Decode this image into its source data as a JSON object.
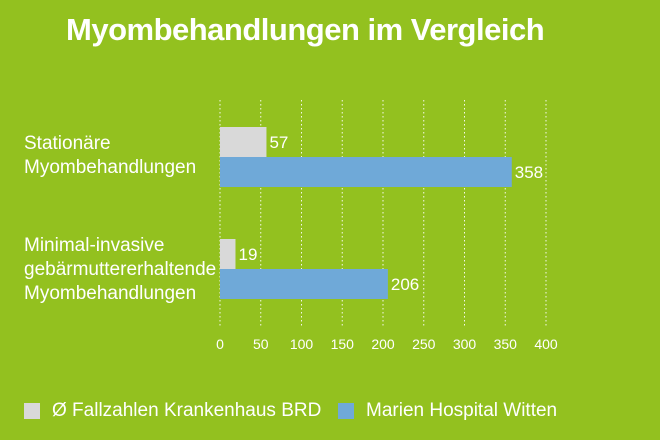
{
  "chart_data": {
    "type": "bar",
    "orientation": "horizontal",
    "title": "Myombehandlungen im Vergleich",
    "categories": [
      [
        "Stationäre",
        "Myombehandlungen"
      ],
      [
        "Minimal-invasive",
        "gebärmuttererhaltende",
        "Myombehandlungen"
      ]
    ],
    "series": [
      {
        "name": "Ø Fallzahlen Krankenhaus BRD",
        "color": "#d9d9d9",
        "values": [
          57,
          19
        ]
      },
      {
        "name": "Marien Hospital Witten",
        "color": "#6fa9d8",
        "values": [
          358,
          206
        ]
      }
    ],
    "xlim": [
      0,
      400
    ],
    "xticks": [
      0,
      50,
      100,
      150,
      200,
      250,
      300,
      350,
      400
    ],
    "grid": true,
    "legend": "bottom"
  },
  "colors": {
    "background": "#93c11f",
    "grid": "#ffffff"
  }
}
